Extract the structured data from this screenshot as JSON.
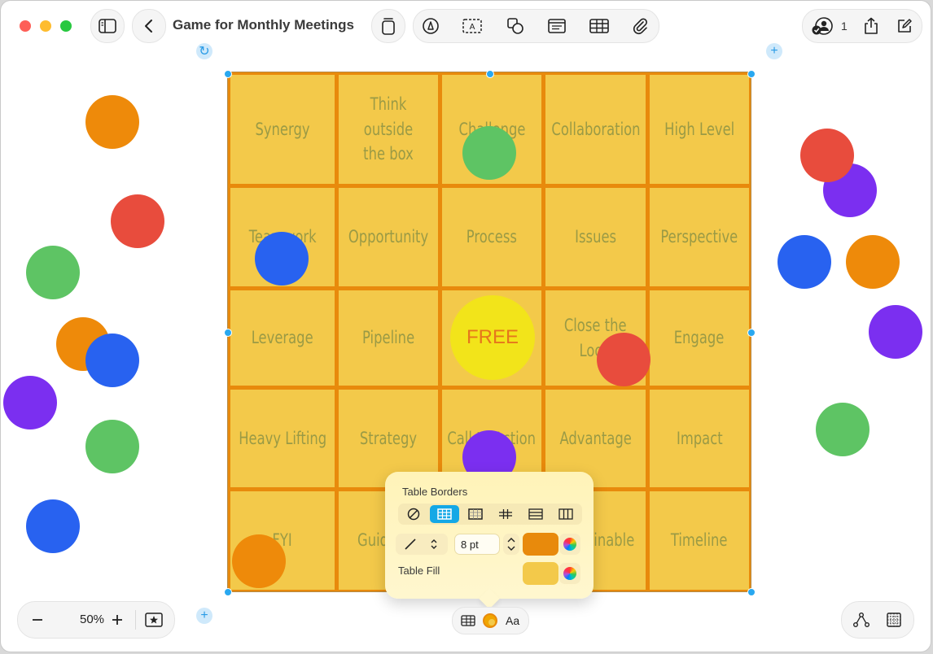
{
  "window": {
    "title": "Game for Monthly Meetings"
  },
  "toolbar": {
    "icons": [
      "sidebar-icon",
      "back-chevron-icon",
      "insert-icon",
      "pen-icon",
      "text-box-icon",
      "shapes-icon",
      "media-icon",
      "table-icon",
      "attachment-icon",
      "collaborate-icon",
      "share-icon",
      "compose-icon"
    ],
    "collaborator_count": "1"
  },
  "board": {
    "cells": [
      [
        "Synergy",
        "Think outside\nthe box",
        "Challenge",
        "Collaboration",
        "High Level"
      ],
      [
        "Teamwork",
        "Opportunity",
        "Process",
        "Issues",
        "Perspective"
      ],
      [
        "Leverage",
        "Pipeline",
        "",
        "Close the\nLoop",
        "Engage"
      ],
      [
        "Heavy Lifting",
        "Strategy",
        "Call to Action",
        "Advantage",
        "Impact"
      ],
      [
        "FYI",
        "Guide",
        "",
        "Sustainable",
        "Timeline"
      ]
    ],
    "free_label": "FREE",
    "colors": {
      "cell_fill": "#f3c94a",
      "border": "#e88a0c",
      "text": "#9a9a45"
    }
  },
  "markers": {
    "colors": {
      "orange": "#ee8a0a",
      "red": "#e84c3d",
      "green": "#5ec464",
      "blue": "#2862f0",
      "purple": "#7b2ff0"
    }
  },
  "popover": {
    "borders_label": "Table Borders",
    "border_width": "8 pt",
    "fill_label": "Table Fill",
    "border_color": "#e88a0c",
    "fill_color": "#f3c94a"
  },
  "zoom": {
    "value": "50%"
  },
  "format_bar": {
    "text_label": "Aa"
  }
}
